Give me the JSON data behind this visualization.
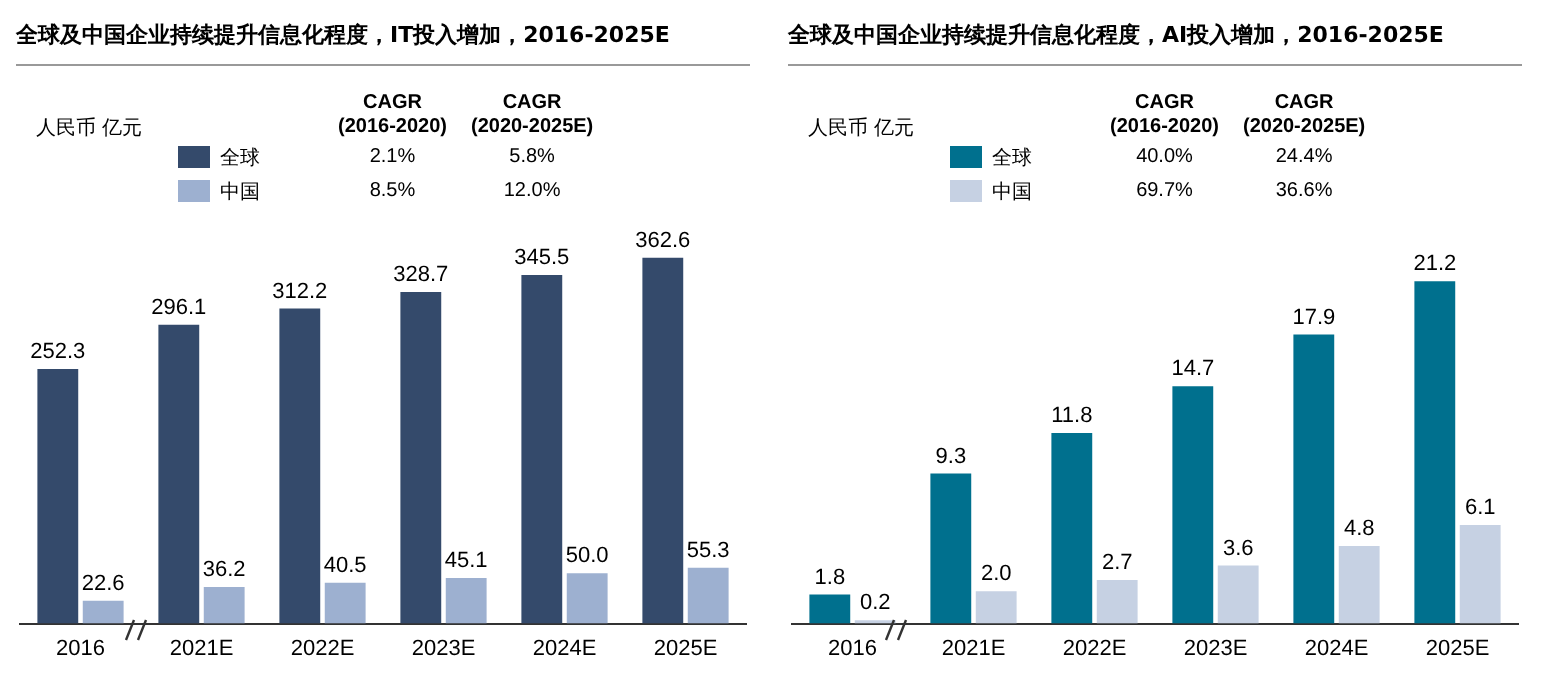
{
  "chart_data": [
    {
      "type": "bar",
      "title": "全球及中国企业持续提升信息化程度，IT投入增加，2016-2025E",
      "ylabel": "人民币 亿元",
      "categories": [
        "2016",
        "2021E",
        "2022E",
        "2023E",
        "2024E",
        "2025E"
      ],
      "series": [
        {
          "name": "全球",
          "color": "#344a6b",
          "values": [
            252.3,
            296.1,
            312.2,
            328.7,
            345.5,
            362.6
          ],
          "value_labels": [
            "252.3",
            "296.1",
            "312.2",
            "328.7",
            "345.5",
            "362.6"
          ]
        },
        {
          "name": "中国",
          "color": "#9db0d0",
          "values": [
            22.6,
            36.2,
            40.5,
            45.1,
            50.0,
            55.3
          ],
          "value_labels": [
            "22.6",
            "36.2",
            "40.5",
            "45.1",
            "50.0",
            "55.3"
          ]
        }
      ],
      "annotations": [
        "CAGR (2016-2020)",
        "CAGR (2020-2025E)",
        "2.1%",
        "5.8%",
        "8.5%",
        "12.0%"
      ],
      "legend": "top",
      "grid": false,
      "tick_labels": "x"
    },
    {
      "type": "bar",
      "title": "全球及中国企业持续提升信息化程度，AI投入增加，2016-2025E",
      "ylabel": "人民币 亿元",
      "categories": [
        "2016",
        "2021E",
        "2022E",
        "2023E",
        "2024E",
        "2025E"
      ],
      "series": [
        {
          "name": "全球",
          "color": "#00708e",
          "values": [
            1.8,
            9.3,
            11.8,
            14.7,
            17.9,
            21.2
          ],
          "value_labels": [
            "1.8",
            "9.3",
            "11.8",
            "14.7",
            "17.9",
            "21.2"
          ]
        },
        {
          "name": "中国",
          "color": "#c6d1e3",
          "values": [
            0.2,
            2.0,
            2.7,
            3.6,
            4.8,
            6.1
          ],
          "value_labels": [
            "0.2",
            "2.0",
            "2.7",
            "3.6",
            "4.8",
            "6.1"
          ]
        }
      ],
      "annotations": [
        "CAGR (2016-2020)",
        "CAGR (2020-2025E)",
        "40.0%",
        "24.4%",
        "69.7%",
        "36.6%"
      ],
      "legend": "top",
      "grid": false,
      "tick_labels": "x"
    }
  ]
}
